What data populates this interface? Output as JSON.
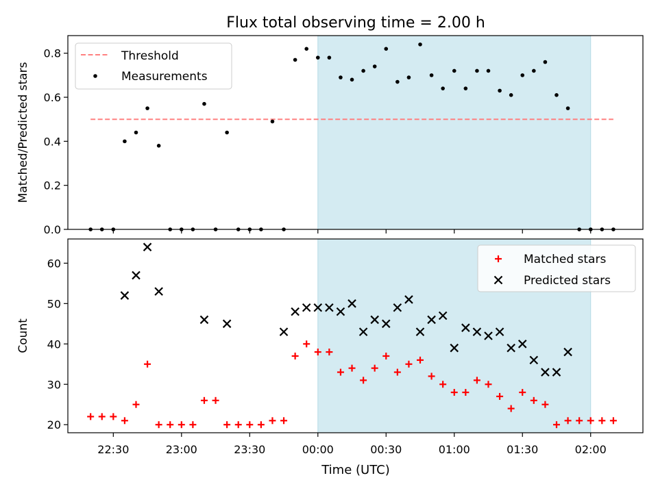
{
  "title": "Flux total observing time = 2.00 h",
  "xlabel": "Time (UTC)",
  "x_tick_labels": [
    "22:30",
    "23:00",
    "23:30",
    "00:00",
    "00:30",
    "01:00",
    "01:30",
    "02:00"
  ],
  "colors": {
    "highlight": "#d4ebf2",
    "threshold": "#ff8080",
    "measurements": "#000000",
    "matched": "#ff0000",
    "predicted": "#000000"
  },
  "chart_data": [
    {
      "type": "scatter",
      "panel": "top",
      "ylabel": "Matched/Predicted stars",
      "xlim": [
        "22:10",
        "02:23"
      ],
      "ylim": [
        0,
        0.88
      ],
      "y_ticks": [
        0.0,
        0.2,
        0.4,
        0.6,
        0.8
      ],
      "y_tick_labels": [
        "0.0",
        "0.2",
        "0.4",
        "0.6",
        "0.8"
      ],
      "highlight_span": [
        "00:00",
        "02:00"
      ],
      "legend_position": "upper-left",
      "threshold": {
        "name": "Threshold",
        "value": 0.5,
        "x_range": [
          "22:20",
          "02:10"
        ],
        "style": "dashed"
      },
      "series": [
        {
          "name": "Measurements",
          "x": [
            "22:20",
            "22:25",
            "22:30",
            "22:35",
            "22:40",
            "22:45",
            "22:50",
            "22:55",
            "23:00",
            "23:05",
            "23:10",
            "23:15",
            "23:20",
            "23:25",
            "23:30",
            "23:35",
            "23:40",
            "23:45",
            "23:50",
            "23:55",
            "00:00",
            "00:05",
            "00:10",
            "00:15",
            "00:20",
            "00:25",
            "00:30",
            "00:35",
            "00:40",
            "00:45",
            "00:50",
            "00:55",
            "01:00",
            "01:05",
            "01:10",
            "01:15",
            "01:20",
            "01:25",
            "01:30",
            "01:35",
            "01:40",
            "01:45",
            "01:50",
            "01:55",
            "02:00",
            "02:05",
            "02:10"
          ],
          "y": [
            0,
            0,
            0,
            0.4,
            0.44,
            0.55,
            0.38,
            0,
            0,
            0,
            0.57,
            0,
            0.44,
            0,
            0,
            0,
            0.49,
            0,
            0.77,
            0.82,
            0.78,
            0.78,
            0.69,
            0.68,
            0.72,
            0.74,
            0.82,
            0.67,
            0.69,
            0.84,
            0.7,
            0.64,
            0.72,
            0.64,
            0.72,
            0.72,
            0.63,
            0.61,
            0.7,
            0.72,
            0.76,
            0.61,
            0.55,
            0,
            0,
            0,
            0
          ]
        }
      ]
    },
    {
      "type": "scatter",
      "panel": "bottom",
      "ylabel": "Count",
      "xlim": [
        "22:10",
        "02:23"
      ],
      "ylim": [
        18,
        66
      ],
      "y_ticks": [
        20,
        30,
        40,
        50,
        60
      ],
      "y_tick_labels": [
        "20",
        "30",
        "40",
        "50",
        "60"
      ],
      "highlight_span": [
        "00:00",
        "02:00"
      ],
      "legend_position": "upper-right",
      "series": [
        {
          "name": "Matched stars",
          "marker": "plus",
          "x": [
            "22:20",
            "22:25",
            "22:30",
            "22:35",
            "22:40",
            "22:45",
            "22:50",
            "22:55",
            "23:00",
            "23:05",
            "23:10",
            "23:15",
            "23:20",
            "23:25",
            "23:30",
            "23:35",
            "23:40",
            "23:45",
            "23:50",
            "23:55",
            "00:00",
            "00:05",
            "00:10",
            "00:15",
            "00:20",
            "00:25",
            "00:30",
            "00:35",
            "00:40",
            "00:45",
            "00:50",
            "00:55",
            "01:00",
            "01:05",
            "01:10",
            "01:15",
            "01:20",
            "01:25",
            "01:30",
            "01:35",
            "01:40",
            "01:45",
            "01:50",
            "01:55",
            "02:00",
            "02:05",
            "02:10"
          ],
          "y": [
            22,
            22,
            22,
            21,
            25,
            35,
            20,
            20,
            20,
            20,
            26,
            26,
            20,
            20,
            20,
            20,
            21,
            21,
            37,
            40,
            38,
            38,
            33,
            34,
            31,
            34,
            37,
            33,
            35,
            36,
            32,
            30,
            28,
            28,
            31,
            30,
            27,
            24,
            28,
            26,
            25,
            20,
            21,
            21,
            21,
            21,
            21
          ]
        },
        {
          "name": "Predicted stars",
          "marker": "x",
          "x": [
            "22:35",
            "22:40",
            "22:45",
            "22:50",
            "23:10",
            "23:20",
            "23:45",
            "23:50",
            "23:55",
            "00:00",
            "00:05",
            "00:10",
            "00:15",
            "00:20",
            "00:25",
            "00:30",
            "00:35",
            "00:40",
            "00:45",
            "00:50",
            "00:55",
            "01:00",
            "01:05",
            "01:10",
            "01:15",
            "01:20",
            "01:25",
            "01:30",
            "01:35",
            "01:40",
            "01:45",
            "01:50"
          ],
          "y": [
            52,
            57,
            64,
            53,
            46,
            45,
            43,
            48,
            49,
            49,
            49,
            48,
            50,
            43,
            46,
            45,
            49,
            51,
            43,
            46,
            47,
            39,
            44,
            43,
            42,
            43,
            39,
            40,
            36,
            33,
            33,
            38
          ]
        }
      ]
    }
  ]
}
